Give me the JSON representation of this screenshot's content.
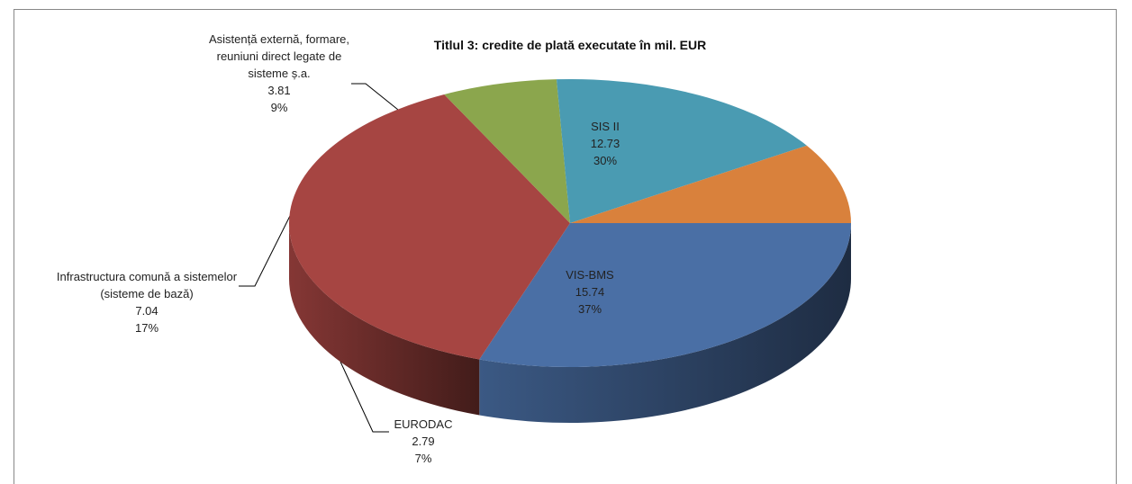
{
  "chart_data": {
    "type": "pie3d",
    "title": "Titlul 3: credite de plată executate în mil. EUR",
    "categories": [
      "SIS II",
      "VIS-BMS",
      "EURODAC",
      "Infrastructura comună a sistemelor (sisteme de bază)",
      "Asistență externă, formare, reuniuni direct legate de sisteme ș.a."
    ],
    "values": [
      12.73,
      15.74,
      2.79,
      7.04,
      3.81
    ],
    "percentages": [
      30,
      37,
      7,
      17,
      9
    ],
    "percentage_labels": [
      "30%",
      "37%",
      "7%",
      "17%",
      "9%"
    ],
    "colors": [
      "#4a6fa5",
      "#a64542",
      "#8ba64d",
      "#4a9bb2",
      "#d9813c"
    ]
  }
}
